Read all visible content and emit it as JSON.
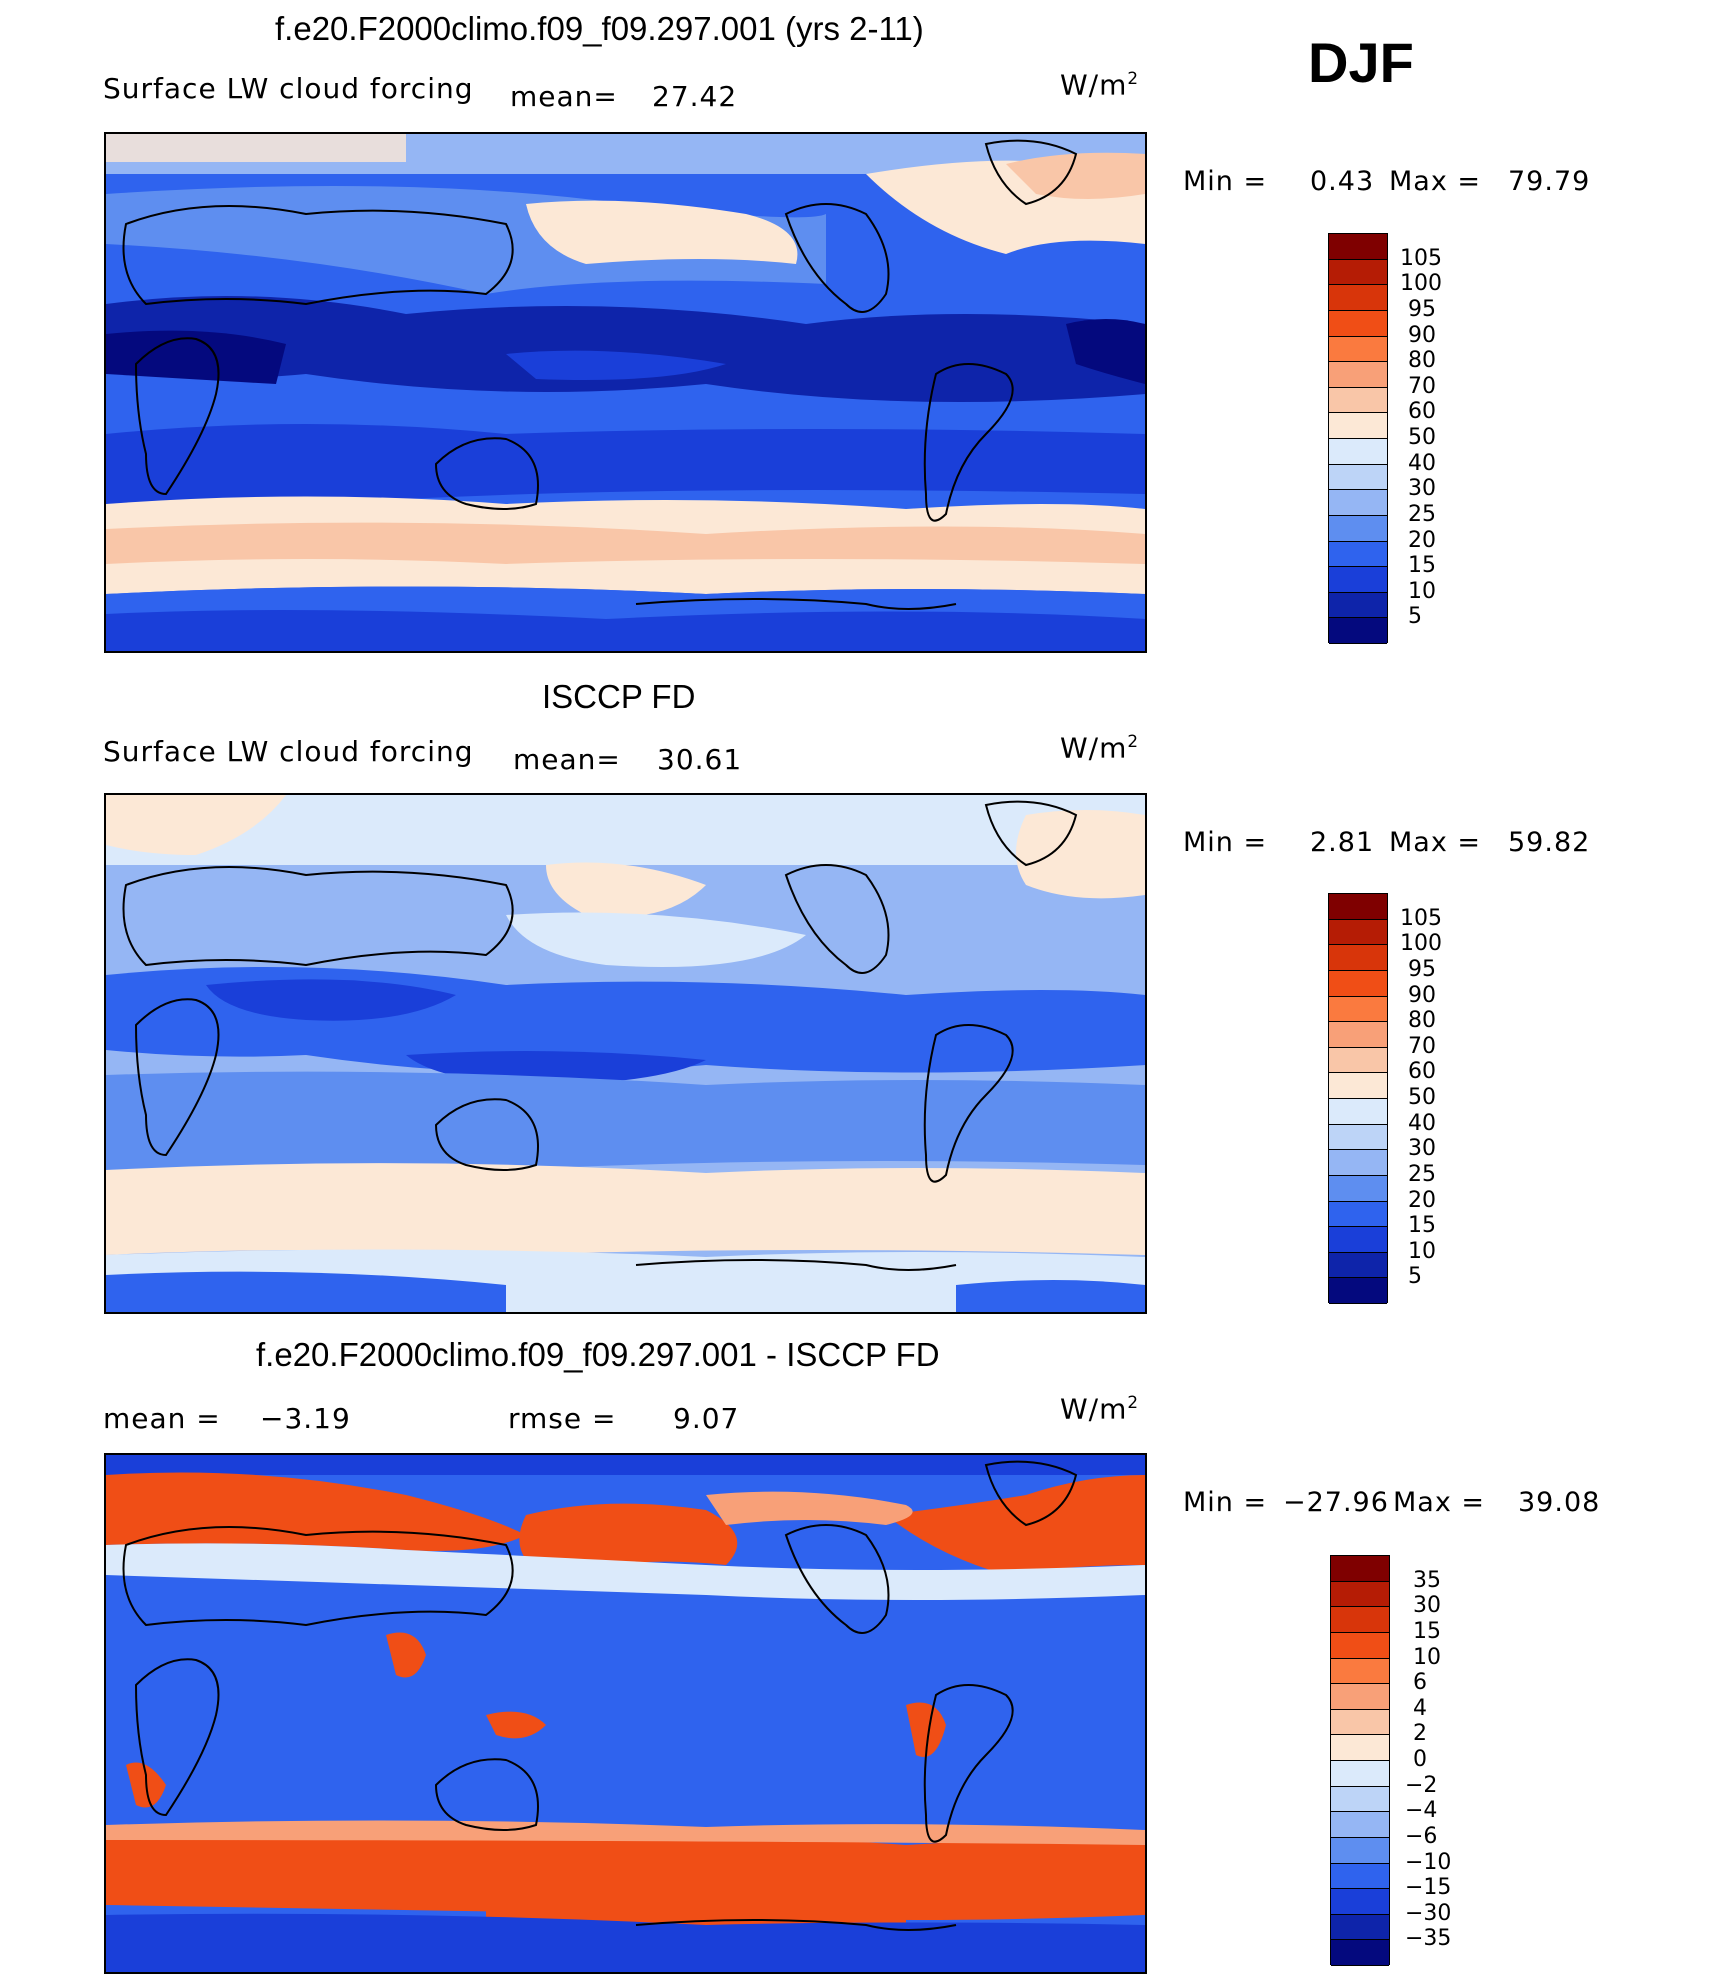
{
  "season": "DJF",
  "panels": [
    {
      "title": "f.e20.F2000climo.f09_f09.297.001 (yrs 2-11)",
      "variable": "Surface LW cloud forcing",
      "stat1_label": "mean=",
      "stat1_value": "27.42",
      "units_base": "W/m",
      "units_exp": "2",
      "min_label": "Min =",
      "min_value": "0.43",
      "max_label": "Max =",
      "max_value": "79.79",
      "levels": [
        "105",
        "100",
        "95",
        "90",
        "80",
        "70",
        "60",
        "50",
        "40",
        "30",
        "25",
        "20",
        "15",
        "10",
        "5"
      ],
      "colors": [
        "#7f0000",
        "#b51c05",
        "#d8350a",
        "#f04e16",
        "#fa7a3f",
        "#f8a078",
        "#f9c6a8",
        "#fce8d6",
        "#dbeafb",
        "#bdd4f7",
        "#95b6f4",
        "#5e8ef0",
        "#2f63ee",
        "#1a3fd9",
        "#0e24aa",
        "#04097e"
      ]
    },
    {
      "title": "ISCCP FD",
      "variable": "Surface LW cloud forcing",
      "stat1_label": "mean=",
      "stat1_value": "30.61",
      "units_base": "W/m",
      "units_exp": "2",
      "min_label": "Min =",
      "min_value": "2.81",
      "max_label": "Max =",
      "max_value": "59.82",
      "levels": [
        "105",
        "100",
        "95",
        "90",
        "80",
        "70",
        "60",
        "50",
        "40",
        "30",
        "25",
        "20",
        "15",
        "10",
        "5"
      ],
      "colors": [
        "#7f0000",
        "#b51c05",
        "#d8350a",
        "#f04e16",
        "#fa7a3f",
        "#f8a078",
        "#f9c6a8",
        "#fce8d6",
        "#dbeafb",
        "#bdd4f7",
        "#95b6f4",
        "#5e8ef0",
        "#2f63ee",
        "#1a3fd9",
        "#0e24aa",
        "#04097e"
      ]
    },
    {
      "title": "f.e20.F2000climo.f09_f09.297.001 - ISCCP FD",
      "variable": "",
      "stat1_label": "mean =",
      "stat1_value": "−3.19",
      "stat2_label": "rmse =",
      "stat2_value": "9.07",
      "units_base": "W/m",
      "units_exp": "2",
      "min_label": "Min =",
      "min_value": "−27.96",
      "max_label": "Max =",
      "max_value": "39.08",
      "levels": [
        "35",
        "30",
        "15",
        "10",
        "6",
        "4",
        "2",
        "0",
        "−2",
        "−4",
        "−6",
        "−10",
        "−15",
        "−30",
        "−35"
      ],
      "colors": [
        "#7f0000",
        "#b51c05",
        "#d8350a",
        "#f04e16",
        "#fa7a3f",
        "#f8a078",
        "#f9c6a8",
        "#fce8d6",
        "#dbeafb",
        "#bdd4f7",
        "#95b6f4",
        "#5e8ef0",
        "#2f63ee",
        "#1a3fd9",
        "#0e24aa",
        "#04097e"
      ]
    }
  ]
}
